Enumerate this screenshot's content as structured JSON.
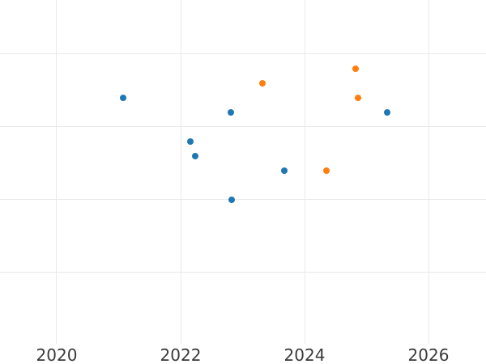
{
  "colors": {
    "background": "#ffffff",
    "grid": "#e9e9e9",
    "tick_label": "#3a3a3a",
    "series_blue": "#1f77b4",
    "series_orange": "#ff7f0e"
  },
  "chart_data": {
    "type": "scatter",
    "title": "",
    "xlabel": "",
    "ylabel": "",
    "grid": true,
    "legend": "none",
    "x_axis": {
      "range": [
        2019.085,
        2026.928
      ],
      "ticks": [
        {
          "value": 2020,
          "label": "2020"
        },
        {
          "value": 2022,
          "label": "2022"
        },
        {
          "value": 2024,
          "label": "2024"
        },
        {
          "value": 2026,
          "label": "2026"
        }
      ]
    },
    "y_axis": {
      "range": [
        0.022,
        4.744
      ],
      "gridline_values": [
        1,
        2,
        3,
        4
      ],
      "tick_labels_visible": false
    },
    "series": [
      {
        "name": "blue-series",
        "color": "#1f77b4",
        "marker": "circle",
        "points": [
          {
            "x": 2021.07,
            "y": 3.4
          },
          {
            "x": 2022.16,
            "y": 2.8
          },
          {
            "x": 2022.24,
            "y": 2.6
          },
          {
            "x": 2022.81,
            "y": 3.2
          },
          {
            "x": 2022.82,
            "y": 2.0
          },
          {
            "x": 2023.67,
            "y": 2.4
          },
          {
            "x": 2025.33,
            "y": 3.2
          }
        ]
      },
      {
        "name": "orange-series",
        "color": "#ff7f0e",
        "marker": "circle",
        "points": [
          {
            "x": 2023.32,
            "y": 3.6
          },
          {
            "x": 2024.35,
            "y": 2.4
          },
          {
            "x": 2024.82,
            "y": 3.8
          },
          {
            "x": 2024.86,
            "y": 3.4
          }
        ]
      }
    ]
  }
}
